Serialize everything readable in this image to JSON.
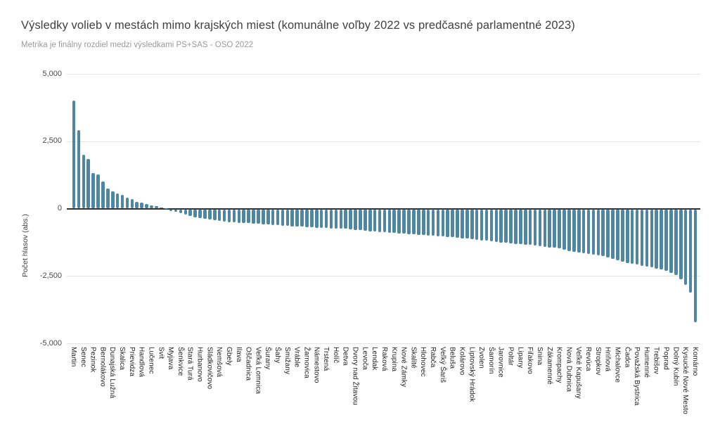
{
  "title": "Výsledky volieb v mestách mimo krajských miest (komunálne voľby 2022 vs predčasné parlamentné 2023)",
  "subtitle": "Metrika je finálny rozdiel medzi výsledkami PS+SAS - OSO 2022",
  "colors": {
    "bar": "#4f86a2",
    "gridline": "#e3e3e3",
    "zero_line": "#333333",
    "title_text": "#3f3f3f",
    "subtitle_text": "#9a9a9a",
    "background": "#ffffff"
  },
  "chart_data": {
    "type": "bar",
    "title": "Výsledky volieb v mestách mimo krajských miest (komunálne voľby 2022 vs predčasné parlamentné 2023)",
    "subtitle": "Metrika je finálny rozdiel medzi výsledkami PS+SAS - OSO 2022",
    "xlabel": "",
    "ylabel": "Počet hlasov (abs.)",
    "ylim": [
      -5000,
      5000
    ],
    "yticks": [
      5000,
      2500,
      0,
      -2500,
      -5000
    ],
    "ytick_labels": [
      "5,000",
      "2,500",
      "0",
      "-2,500",
      "-5,000"
    ],
    "grid": true,
    "legend": false,
    "bar_color": "#4f86a2",
    "bars": [
      [
        "Martin",
        4000
      ],
      [
        "",
        2900
      ],
      [
        "Senec",
        2000
      ],
      [
        "",
        1840
      ],
      [
        "Pezinok",
        1310
      ],
      [
        "",
        1270
      ],
      [
        "Bernolákovo",
        1000
      ],
      [
        "",
        740
      ],
      [
        "Dunajská Lužná",
        640
      ],
      [
        "",
        560
      ],
      [
        "Skalica",
        500
      ],
      [
        "",
        400
      ],
      [
        "Prievidza",
        340
      ],
      [
        "",
        260
      ],
      [
        "Handlová",
        220
      ],
      [
        "",
        160
      ],
      [
        "Lučenec",
        120
      ],
      [
        "",
        90
      ],
      [
        "Svit",
        50
      ],
      [
        "",
        10
      ],
      [
        "Myjava",
        -60
      ],
      [
        "",
        -100
      ],
      [
        "Šenkvice",
        -150
      ],
      [
        "",
        -200
      ],
      [
        "Stará Turá",
        -250
      ],
      [
        "",
        -290
      ],
      [
        "Hurbanovo",
        -330
      ],
      [
        "",
        -360
      ],
      [
        "Sládkovičovo",
        -390
      ],
      [
        "",
        -415
      ],
      [
        "Nemšová",
        -440
      ],
      [
        "",
        -455
      ],
      [
        "Gbely",
        -470
      ],
      [
        "",
        -485
      ],
      [
        "Ilava",
        -500
      ],
      [
        "",
        -510
      ],
      [
        "Oščadnica",
        -520
      ],
      [
        "",
        -532
      ],
      [
        "Veľká Lomnica",
        -545
      ],
      [
        "",
        -558
      ],
      [
        "Šurany",
        -570
      ],
      [
        "",
        -580
      ],
      [
        "Šahy",
        -590
      ],
      [
        "",
        -602
      ],
      [
        "Smižany",
        -615
      ],
      [
        "",
        -628
      ],
      [
        "Vráble",
        -640
      ],
      [
        "",
        -650
      ],
      [
        "Žarnovica",
        -660
      ],
      [
        "",
        -670
      ],
      [
        "Námestovo",
        -680
      ],
      [
        "",
        -690
      ],
      [
        "Trstená",
        -700
      ],
      [
        "",
        -708
      ],
      [
        "Holíč",
        -715
      ],
      [
        "",
        -722
      ],
      [
        "Detva",
        -730
      ],
      [
        "",
        -745
      ],
      [
        "Dvory nad Žitavou",
        -760
      ],
      [
        "",
        -780
      ],
      [
        "Levoča",
        -800
      ],
      [
        "",
        -815
      ],
      [
        "Lendak",
        -830
      ],
      [
        "",
        -845
      ],
      [
        "Raková",
        -860
      ],
      [
        "",
        -870
      ],
      [
        "Krupina",
        -880
      ],
      [
        "",
        -895
      ],
      [
        "Nové Zámky",
        -910
      ],
      [
        "",
        -920
      ],
      [
        "Skalité",
        -930
      ],
      [
        "",
        -940
      ],
      [
        "Hlohovec",
        -950
      ],
      [
        "",
        -970
      ],
      [
        "Rabča",
        -990
      ],
      [
        "",
        -1000
      ],
      [
        "Veľký Šariš",
        -1010
      ],
      [
        "",
        -1025
      ],
      [
        "Beluša",
        -1040
      ],
      [
        "",
        -1060
      ],
      [
        "Kolárovo",
        -1080
      ],
      [
        "",
        -1095
      ],
      [
        "Liptovský Hrádok",
        -1110
      ],
      [
        "",
        -1130
      ],
      [
        "Zvolen",
        -1150
      ],
      [
        "",
        -1170
      ],
      [
        "Šamorín",
        -1190
      ],
      [
        "",
        -1210
      ],
      [
        "Jarovnice",
        -1230
      ],
      [
        "",
        -1250
      ],
      [
        "Poltár",
        -1270
      ],
      [
        "",
        -1285
      ],
      [
        "Lipany",
        -1300
      ],
      [
        "",
        -1315
      ],
      [
        "Fiľakovo",
        -1330
      ],
      [
        "",
        -1350
      ],
      [
        "Snina",
        -1370
      ],
      [
        "",
        -1390
      ],
      [
        "Zákamenné",
        -1410
      ],
      [
        "",
        -1435
      ],
      [
        "Krompachy",
        -1460
      ],
      [
        "",
        -1505
      ],
      [
        "Nová Dubnica",
        -1550
      ],
      [
        "",
        -1575
      ],
      [
        "Veľké Kapušany",
        -1600
      ],
      [
        "",
        -1625
      ],
      [
        "Revúca",
        -1650
      ],
      [
        "",
        -1675
      ],
      [
        "Stropkov",
        -1700
      ],
      [
        "",
        -1740
      ],
      [
        "Hriňová",
        -1780
      ],
      [
        "",
        -1835
      ],
      [
        "Michalovce",
        -1890
      ],
      [
        "",
        -1940
      ],
      [
        "Čadca",
        -1990
      ],
      [
        "",
        -2025
      ],
      [
        "Považská Bystrica",
        -2060
      ],
      [
        "",
        -2095
      ],
      [
        "Humenné",
        -2130
      ],
      [
        "",
        -2165
      ],
      [
        "Trebišov",
        -2200
      ],
      [
        "",
        -2245
      ],
      [
        "Poprad",
        -2290
      ],
      [
        "",
        -2360
      ],
      [
        "Dolný Kubín",
        -2430
      ],
      [
        "",
        -2600
      ],
      [
        "Kysucké Nové Mesto",
        -2810
      ],
      [
        "",
        -3090
      ],
      [
        "Komárno",
        -4180
      ]
    ]
  }
}
